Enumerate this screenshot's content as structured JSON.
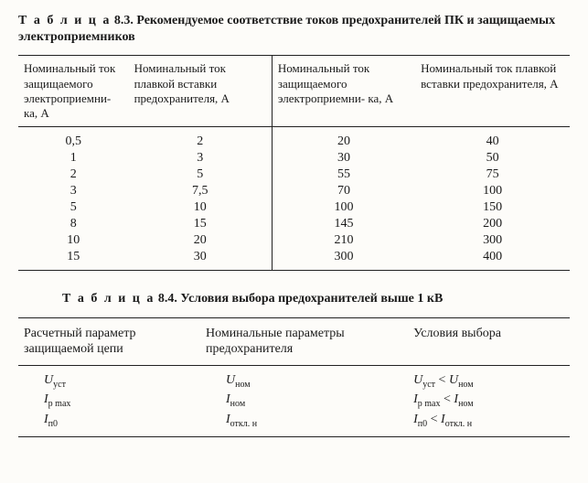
{
  "table83": {
    "caption_spaced": "Т а б л и ц а",
    "caption_rest": " 8.3. Рекомендуемое соответствие токов предохранителей ПК и защищаемых электроприемников",
    "head_col1": "Номинальный ток защищаемого электроприемни- ка, А",
    "head_col2": "Номинальный ток плавкой вставки предохранителя, А",
    "head_col3": "Номинальный ток защищаемого электроприемни- ка, А",
    "head_col4": "Номинальный ток плавкой вставки предохранителя, А",
    "rows_left": [
      [
        "0,5",
        "2"
      ],
      [
        "1",
        "3"
      ],
      [
        "2",
        "5"
      ],
      [
        "3",
        "7,5"
      ],
      [
        "5",
        "10"
      ],
      [
        "8",
        "15"
      ],
      [
        "10",
        "20"
      ],
      [
        "15",
        "30"
      ]
    ],
    "rows_right": [
      [
        "20",
        "40"
      ],
      [
        "30",
        "50"
      ],
      [
        "55",
        "75"
      ],
      [
        "70",
        "100"
      ],
      [
        "100",
        "150"
      ],
      [
        "145",
        "200"
      ],
      [
        "210",
        "300"
      ],
      [
        "300",
        "400"
      ]
    ],
    "colwidths_pct": [
      20,
      26,
      26,
      28
    ],
    "caption_fontsize": 14,
    "cell_fontsize": 14,
    "border_color": "#222222",
    "background_color": "#fdfcf9"
  },
  "table84": {
    "caption_spaced": "Т а б л и ц а",
    "caption_rest": " 8.4. Условия выбора предохранителей выше 1 кВ",
    "head_col1": "Расчетный параметр защищаемой цепи",
    "head_col2": "Номинальные параметры предохранителя",
    "head_col3": "Условия выбора",
    "rows": [
      {
        "c1_main": "U",
        "c1_sub": "уст",
        "c2_main": "U",
        "c2_sub": "ном",
        "c3_a_main": "U",
        "c3_a_sub": "уст",
        "c3_op": " < ",
        "c3_b_main": "U",
        "c3_b_sub": "ном"
      },
      {
        "c1_main": "I",
        "c1_sub": "р max",
        "c2_main": "I",
        "c2_sub": "ном",
        "c3_a_main": "I",
        "c3_a_sub": "р max",
        "c3_op": " < ",
        "c3_b_main": "I",
        "c3_b_sub": "ном"
      },
      {
        "c1_main": "I",
        "c1_sub": "п0",
        "c2_main": "I",
        "c2_sub": "откл. н",
        "c3_a_main": "I",
        "c3_a_sub": "п0",
        "c3_op": " < ",
        "c3_b_main": "I",
        "c3_b_sub": "откл. н"
      }
    ],
    "colwidths_pct": [
      33,
      37,
      30
    ],
    "caption_fontsize": 14,
    "cell_fontsize": 14,
    "border_color": "#222222"
  }
}
